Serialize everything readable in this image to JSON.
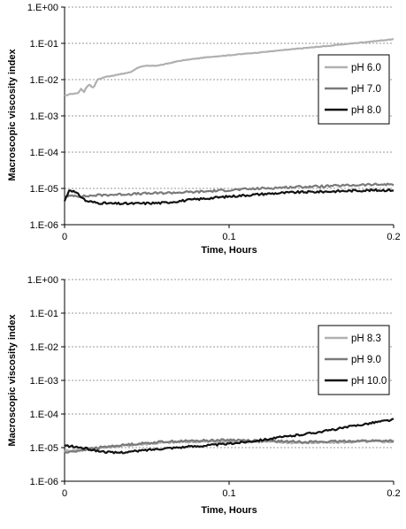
{
  "chart_data": [
    {
      "type": "line",
      "xlabel": "Time, Hours",
      "ylabel": "Macroscopic viscosity index",
      "yscale": "log",
      "xlim": [
        0,
        0.2
      ],
      "ylim": [
        1e-06,
        1
      ],
      "x_ticks": [
        "0",
        "0.1",
        "0.2"
      ],
      "y_ticks": [
        "1.E-06",
        "1.E-05",
        "1.E-04",
        "1.E-03",
        "1.E-02",
        "1.E-01",
        "1.E+00"
      ],
      "grid": "horizontal-dashed",
      "legend_position": "right",
      "series": [
        {
          "name": "pH 6.0",
          "color": "#b0b0b0",
          "points": [
            [
              0,
              0.0035
            ],
            [
              0.003,
              0.004
            ],
            [
              0.008,
              0.0042
            ],
            [
              0.01,
              0.0055
            ],
            [
              0.012,
              0.0045
            ],
            [
              0.013,
              0.006
            ],
            [
              0.015,
              0.0075
            ],
            [
              0.017,
              0.006
            ],
            [
              0.018,
              0.0065
            ],
            [
              0.02,
              0.01
            ],
            [
              0.025,
              0.012
            ],
            [
              0.03,
              0.013
            ],
            [
              0.04,
              0.016
            ],
            [
              0.045,
              0.022
            ],
            [
              0.05,
              0.024
            ],
            [
              0.055,
              0.024
            ],
            [
              0.06,
              0.026
            ],
            [
              0.07,
              0.033
            ],
            [
              0.08,
              0.038
            ],
            [
              0.09,
              0.043
            ],
            [
              0.1,
              0.047
            ],
            [
              0.12,
              0.057
            ],
            [
              0.14,
              0.07
            ],
            [
              0.16,
              0.085
            ],
            [
              0.18,
              0.105
            ],
            [
              0.2,
              0.13
            ]
          ]
        },
        {
          "name": "pH 7.0",
          "color": "#7a7a7a",
          "points": [
            [
              0,
              5.5e-06
            ],
            [
              0.005,
              6.5e-06
            ],
            [
              0.01,
              6e-06
            ],
            [
              0.02,
              6.5e-06
            ],
            [
              0.04,
              7e-06
            ],
            [
              0.06,
              7.5e-06
            ],
            [
              0.08,
              8e-06
            ],
            [
              0.1,
              9e-06
            ],
            [
              0.12,
              1e-05
            ],
            [
              0.14,
              1.1e-05
            ],
            [
              0.16,
              1.15e-05
            ],
            [
              0.18,
              1.25e-05
            ],
            [
              0.2,
              1.3e-05
            ]
          ]
        },
        {
          "name": "pH 8.0",
          "color": "#111111",
          "points": [
            [
              0,
              4.5e-06
            ],
            [
              0.003,
              9.5e-06
            ],
            [
              0.006,
              8e-06
            ],
            [
              0.01,
              6e-06
            ],
            [
              0.013,
              4.5e-06
            ],
            [
              0.02,
              4e-06
            ],
            [
              0.03,
              3.8e-06
            ],
            [
              0.04,
              3.8e-06
            ],
            [
              0.05,
              3.9e-06
            ],
            [
              0.06,
              4e-06
            ],
            [
              0.07,
              4.5e-06
            ],
            [
              0.08,
              5e-06
            ],
            [
              0.1,
              6e-06
            ],
            [
              0.12,
              7e-06
            ],
            [
              0.14,
              7.8e-06
            ],
            [
              0.16,
              8.2e-06
            ],
            [
              0.18,
              8.8e-06
            ],
            [
              0.2,
              9e-06
            ]
          ]
        }
      ]
    },
    {
      "type": "line",
      "xlabel": "Time, Hours",
      "ylabel": "Macroscopic viscosity index",
      "yscale": "log",
      "xlim": [
        0,
        0.2
      ],
      "ylim": [
        1e-06,
        1
      ],
      "x_ticks": [
        "0",
        "0.1",
        "0.2"
      ],
      "y_ticks": [
        "1.E-06",
        "1.E-05",
        "1.E-04",
        "1.E-03",
        "1.E-02",
        "1.E-01",
        "1.E+00"
      ],
      "grid": "horizontal-dashed",
      "legend_position": "right",
      "series": [
        {
          "name": "pH 8.3",
          "color": "#b0b0b0",
          "points": [
            [
              0,
              8e-06
            ],
            [
              0.02,
              9.5e-06
            ],
            [
              0.04,
              1.2e-05
            ],
            [
              0.06,
              1.4e-05
            ],
            [
              0.08,
              1.5e-05
            ],
            [
              0.1,
              1.5e-05
            ],
            [
              0.12,
              1.5e-05
            ],
            [
              0.14,
              1.4e-05
            ],
            [
              0.16,
              1.4e-05
            ],
            [
              0.18,
              1.5e-05
            ],
            [
              0.2,
              1.5e-05
            ]
          ]
        },
        {
          "name": "pH 9.0",
          "color": "#7a7a7a",
          "points": [
            [
              0,
              7e-06
            ],
            [
              0.02,
              1e-05
            ],
            [
              0.04,
              1.25e-05
            ],
            [
              0.06,
              1.5e-05
            ],
            [
              0.08,
              1.6e-05
            ],
            [
              0.1,
              1.7e-05
            ],
            [
              0.12,
              1.6e-05
            ],
            [
              0.14,
              1.5e-05
            ],
            [
              0.16,
              1.5e-05
            ],
            [
              0.18,
              1.6e-05
            ],
            [
              0.2,
              1.6e-05
            ]
          ]
        },
        {
          "name": "pH 10.0",
          "color": "#111111",
          "points": [
            [
              0,
              1.15e-05
            ],
            [
              0.01,
              1e-05
            ],
            [
              0.02,
              8e-06
            ],
            [
              0.03,
              7e-06
            ],
            [
              0.04,
              7.5e-06
            ],
            [
              0.05,
              8.5e-06
            ],
            [
              0.06,
              9.5e-06
            ],
            [
              0.08,
              1.1e-05
            ],
            [
              0.1,
              1.3e-05
            ],
            [
              0.12,
              1.7e-05
            ],
            [
              0.14,
              2.3e-05
            ],
            [
              0.16,
              3.2e-05
            ],
            [
              0.18,
              4.8e-05
            ],
            [
              0.19,
              5.8e-05
            ],
            [
              0.2,
              6.8e-05
            ]
          ]
        }
      ]
    }
  ]
}
